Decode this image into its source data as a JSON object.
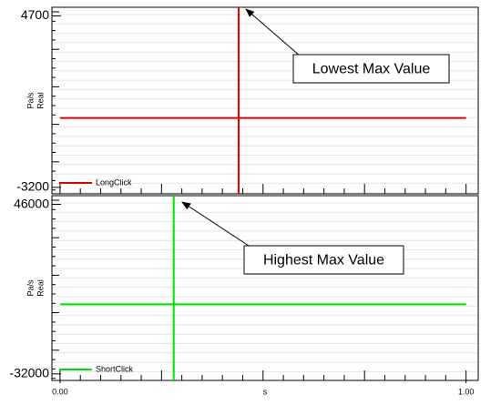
{
  "chart_data": [
    {
      "type": "line",
      "ylabel_lines": [
        "Pa/s",
        "Real"
      ],
      "xlim": [
        -0.02,
        1.03
      ],
      "ylim": [
        -3500,
        5100
      ],
      "yticks": [
        4700,
        -3200
      ],
      "grid": true,
      "legend": "lower left",
      "series": [
        {
          "name": "LongClick",
          "color": "#e00000",
          "x": [
            0,
            0.44,
            0.44,
            0.44,
            0.44,
            1
          ],
          "values": [
            0,
            0,
            5100,
            -3500,
            0,
            0
          ]
        }
      ],
      "annotations": [
        "Lowest Max Value"
      ]
    },
    {
      "type": "line",
      "ylabel_lines": [
        "Pa/s",
        "Real"
      ],
      "xlabel": "s",
      "xlim": [
        -0.02,
        1.03
      ],
      "ylim": [
        -35000,
        50000
      ],
      "yticks": [
        46000,
        -32000
      ],
      "xticks": [
        {
          "value": 0,
          "label": "0.00"
        },
        {
          "value": 1,
          "label": "1.00"
        }
      ],
      "grid": true,
      "legend": "lower left",
      "series": [
        {
          "name": "ShortClick",
          "color": "#00e000",
          "x": [
            0,
            0.28,
            0.28,
            0.28,
            0.28,
            1
          ],
          "values": [
            0,
            0,
            50000,
            -35000,
            0,
            0
          ]
        }
      ],
      "annotations": [
        "Highest Max Value"
      ]
    }
  ]
}
